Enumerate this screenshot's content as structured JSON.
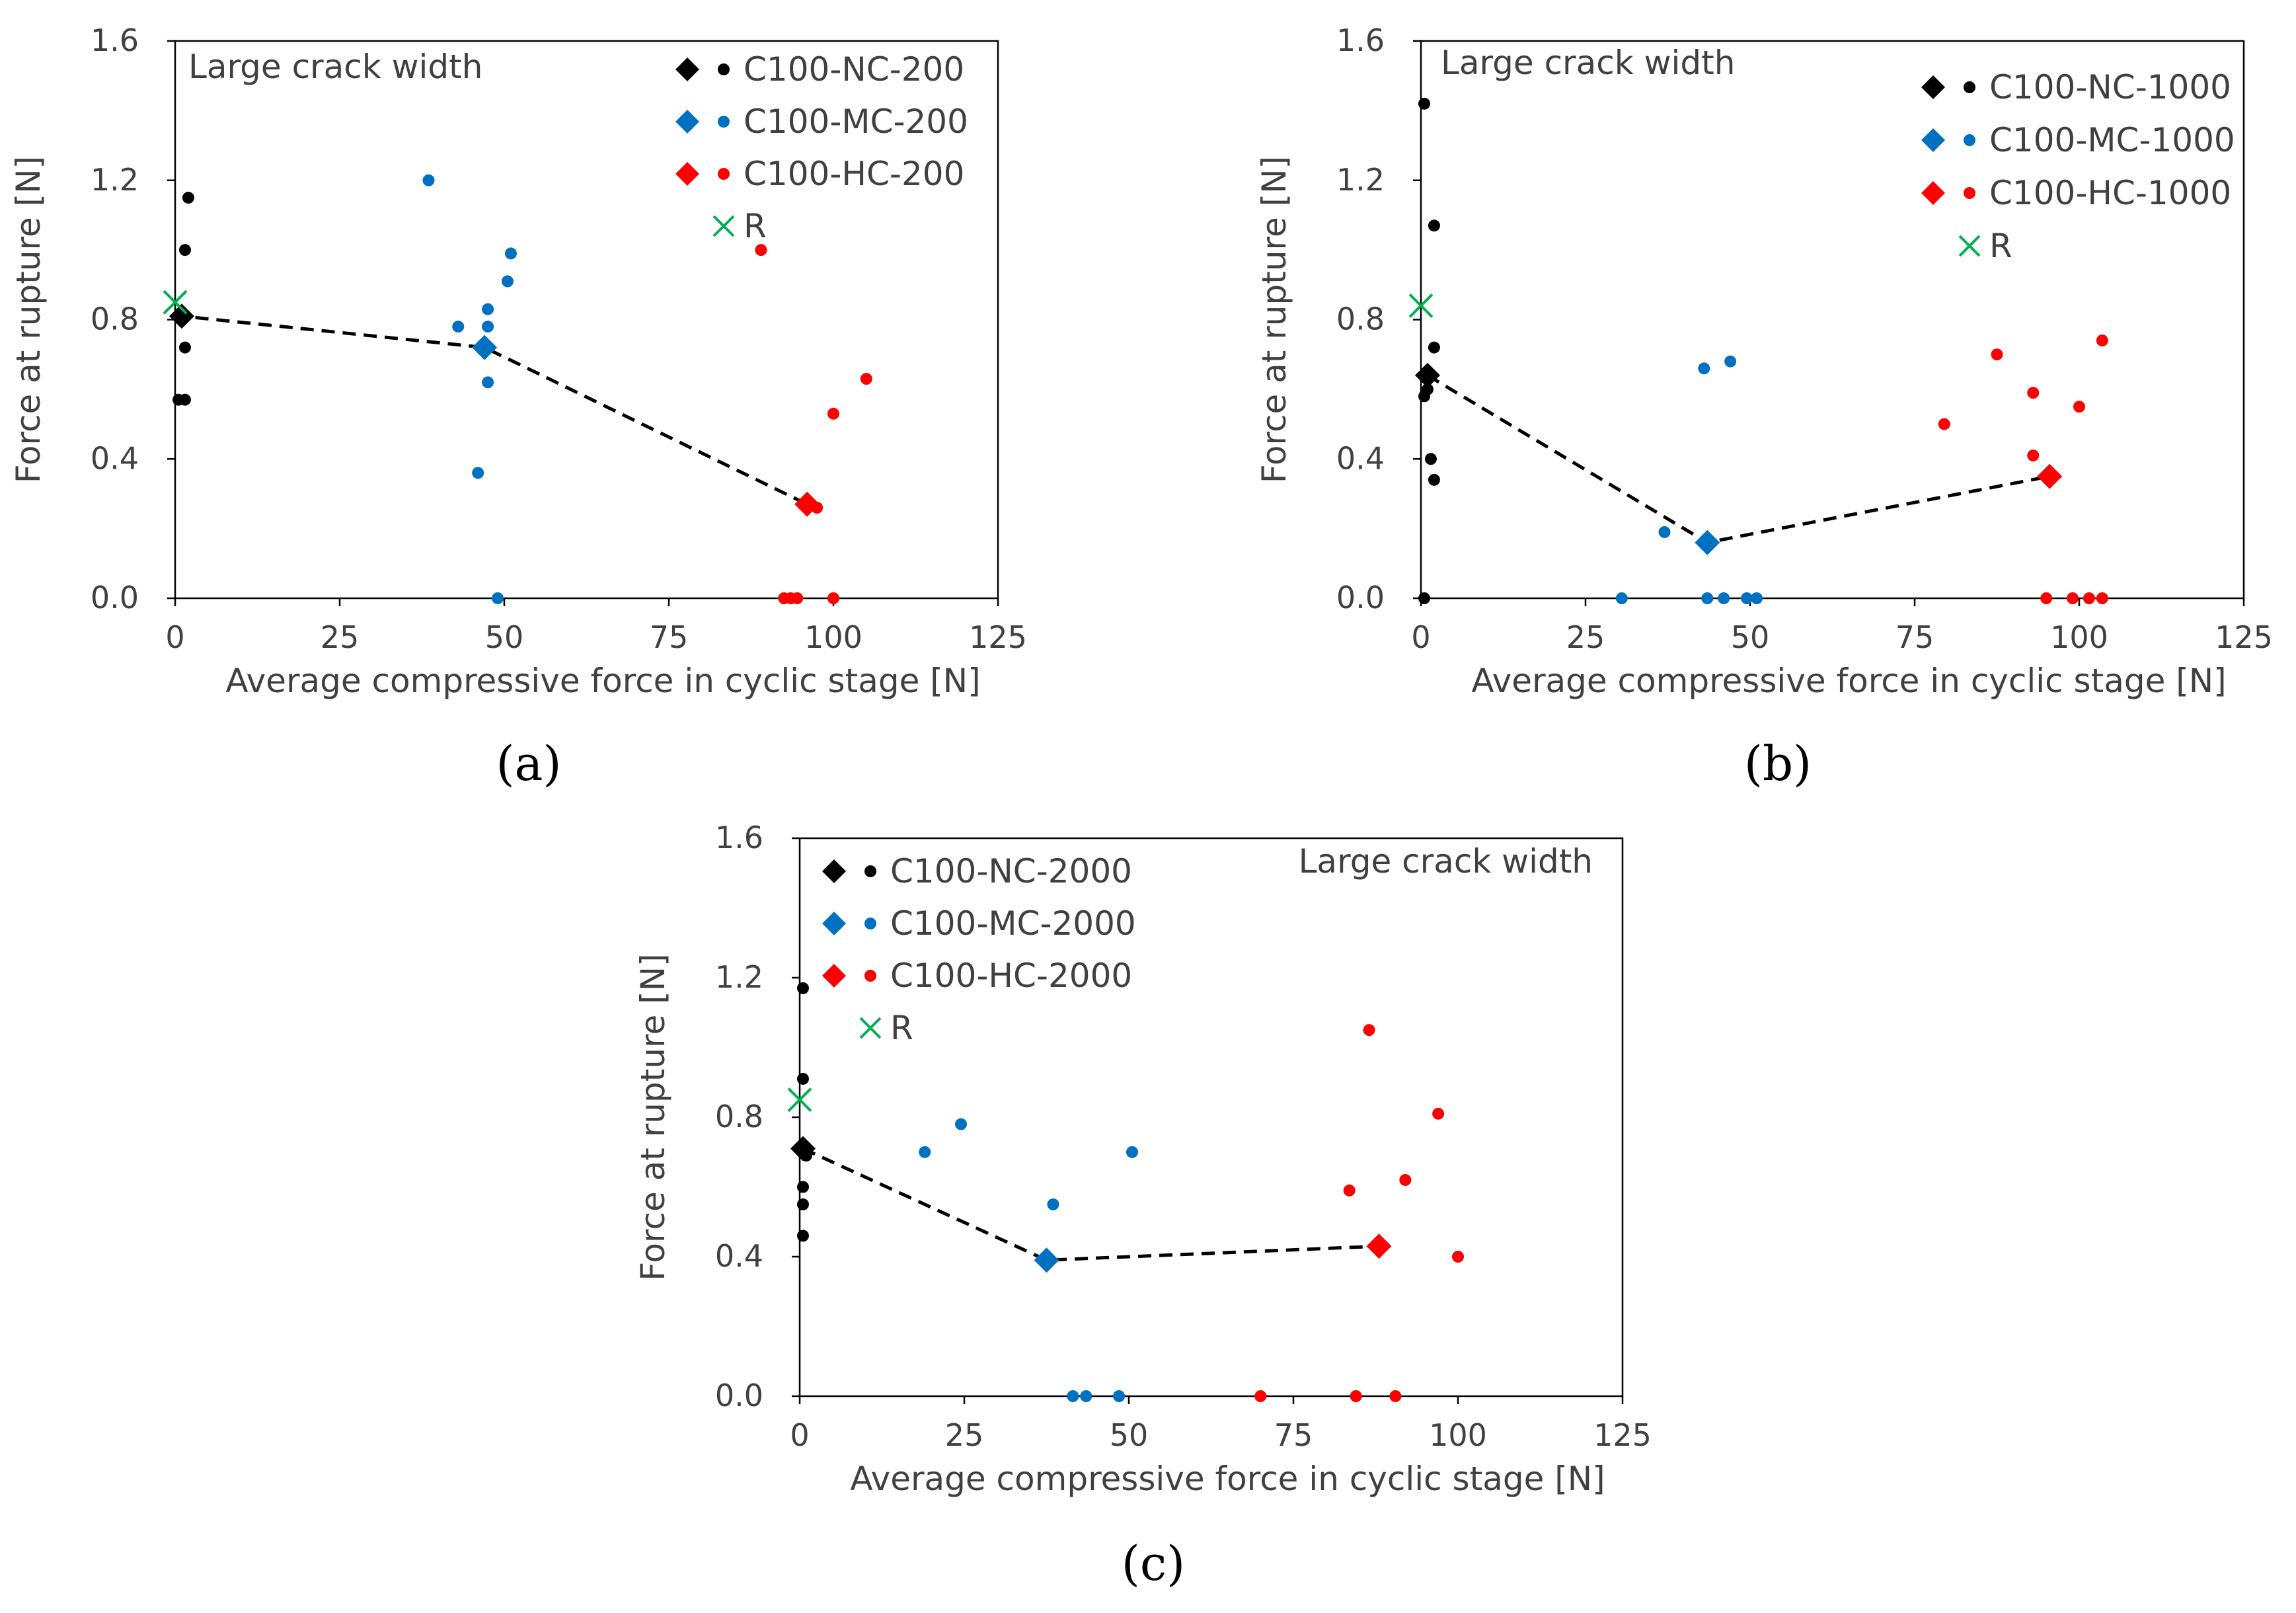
{
  "figure": {
    "panel_labels": [
      "(a)",
      "(b)",
      "(c)"
    ]
  },
  "colors": {
    "NC": "#000000",
    "MC": "#0070C0",
    "HC": "#FF0000",
    "R": "#00B050",
    "trend": "#000000",
    "axis": "#000000",
    "text": "#404040"
  },
  "chart_data": [
    {
      "type": "scatter",
      "panel": "(a)",
      "annotation": "Large crack width",
      "xlabel": "Average compressive force in cyclic stage [N]",
      "ylabel": "Force at rupture [N]",
      "xlim": [
        0,
        125
      ],
      "ylim": [
        0,
        1.6
      ],
      "xticks": [
        "0",
        "25",
        "50",
        "75",
        "100",
        "125"
      ],
      "yticks": [
        "0.0",
        "0.4",
        "0.8",
        "1.2",
        "1.6"
      ],
      "legend_position": "top-right",
      "legend": [
        "C100-NC-200",
        "C100-MC-200",
        "C100-HC-200",
        "R"
      ],
      "series": [
        {
          "name": "C100-NC-200",
          "color_key": "NC",
          "mean": [
            1,
            0.81
          ],
          "points": [
            [
              2,
              1.15
            ],
            [
              1.5,
              1.0
            ],
            [
              1.5,
              0.72
            ],
            [
              0.5,
              0.57
            ],
            [
              1.5,
              0.57
            ]
          ]
        },
        {
          "name": "C100-MC-200",
          "color_key": "MC",
          "mean": [
            47,
            0.72
          ],
          "points": [
            [
              38.5,
              1.2
            ],
            [
              51,
              0.99
            ],
            [
              50.5,
              0.91
            ],
            [
              47.5,
              0.83
            ],
            [
              43,
              0.78
            ],
            [
              47.5,
              0.78
            ],
            [
              47.5,
              0.62
            ],
            [
              46,
              0.36
            ],
            [
              49,
              0.0
            ]
          ]
        },
        {
          "name": "C100-HC-200",
          "color_key": "HC",
          "mean": [
            96,
            0.27
          ],
          "points": [
            [
              89,
              1.0
            ],
            [
              105,
              0.63
            ],
            [
              100,
              0.53
            ],
            [
              97.5,
              0.26
            ],
            [
              92.5,
              0.0
            ],
            [
              93.5,
              0.0
            ],
            [
              94.5,
              0.0
            ],
            [
              100,
              0.0
            ]
          ]
        }
      ],
      "R": [
        0,
        0.85
      ],
      "trend_line": [
        [
          0,
          0.82
        ],
        [
          1,
          0.81
        ],
        [
          47,
          0.72
        ],
        [
          96,
          0.27
        ]
      ]
    },
    {
      "type": "scatter",
      "panel": "(b)",
      "annotation": "Large crack width",
      "xlabel": "Average compressive force in cyclic stage [N]",
      "ylabel": "Force at rupture [N]",
      "xlim": [
        0,
        125
      ],
      "ylim": [
        0,
        1.6
      ],
      "xticks": [
        "0",
        "25",
        "50",
        "75",
        "100",
        "125"
      ],
      "yticks": [
        "0.0",
        "0.4",
        "0.8",
        "1.2",
        "1.6"
      ],
      "legend_position": "top-right",
      "legend": [
        "C100-NC-1000",
        "C100-MC-1000",
        "C100-HC-1000",
        "R"
      ],
      "series": [
        {
          "name": "C100-NC-1000",
          "color_key": "NC",
          "mean": [
            1,
            0.64
          ],
          "points": [
            [
              0.5,
              1.42
            ],
            [
              2,
              1.07
            ],
            [
              2,
              0.72
            ],
            [
              0.5,
              0.58
            ],
            [
              1,
              0.6
            ],
            [
              1.5,
              0.4
            ],
            [
              2,
              0.34
            ],
            [
              0.5,
              0.0
            ]
          ]
        },
        {
          "name": "C100-MC-1000",
          "color_key": "MC",
          "mean": [
            43.5,
            0.16
          ],
          "points": [
            [
              43,
              0.66
            ],
            [
              47,
              0.68
            ],
            [
              37,
              0.19
            ],
            [
              30.5,
              0.0
            ],
            [
              43.5,
              0.0
            ],
            [
              46,
              0.0
            ],
            [
              49.5,
              0.0
            ],
            [
              51,
              0.0
            ]
          ]
        },
        {
          "name": "C100-HC-1000",
          "color_key": "HC",
          "mean": [
            95.5,
            0.35
          ],
          "points": [
            [
              103.5,
              0.74
            ],
            [
              87.5,
              0.7
            ],
            [
              93,
              0.59
            ],
            [
              100,
              0.55
            ],
            [
              79.5,
              0.5
            ],
            [
              93,
              0.41
            ],
            [
              95,
              0.0
            ],
            [
              99,
              0.0
            ],
            [
              101.5,
              0.0
            ],
            [
              103.5,
              0.0
            ]
          ]
        }
      ],
      "R": [
        0,
        0.84
      ],
      "trend_line": [
        [
          1,
          0.64
        ],
        [
          43.5,
          0.16
        ],
        [
          95.5,
          0.35
        ]
      ]
    },
    {
      "type": "scatter",
      "panel": "(c)",
      "annotation": "Large crack width",
      "xlabel": "Average compressive force in cyclic stage [N]",
      "ylabel": "Force at rupture [N]",
      "xlim": [
        0,
        125
      ],
      "ylim": [
        0,
        1.6
      ],
      "xticks": [
        "0",
        "25",
        "50",
        "75",
        "100",
        "125"
      ],
      "yticks": [
        "0.0",
        "0.4",
        "0.8",
        "1.2",
        "1.6"
      ],
      "legend_position": "top-left",
      "legend": [
        "C100-NC-2000",
        "C100-MC-2000",
        "C100-HC-2000",
        "R"
      ],
      "series": [
        {
          "name": "C100-NC-2000",
          "color_key": "NC",
          "mean": [
            0.5,
            0.71
          ],
          "points": [
            [
              0.5,
              1.17
            ],
            [
              0.5,
              0.91
            ],
            [
              1,
              0.69
            ],
            [
              0.5,
              0.6
            ],
            [
              0.5,
              0.55
            ],
            [
              0.5,
              0.46
            ]
          ]
        },
        {
          "name": "C100-MC-2000",
          "color_key": "MC",
          "mean": [
            37.5,
            0.39
          ],
          "points": [
            [
              24.5,
              0.78
            ],
            [
              19,
              0.7
            ],
            [
              50.5,
              0.7
            ],
            [
              38.5,
              0.55
            ],
            [
              41.5,
              0.0
            ],
            [
              43.5,
              0.0
            ],
            [
              48.5,
              0.0
            ]
          ]
        },
        {
          "name": "C100-HC-2000",
          "color_key": "HC",
          "mean": [
            88,
            0.43
          ],
          "points": [
            [
              86.5,
              1.05
            ],
            [
              97,
              0.81
            ],
            [
              92,
              0.62
            ],
            [
              83.5,
              0.59
            ],
            [
              100,
              0.4
            ],
            [
              70,
              0.0
            ],
            [
              84.5,
              0.0
            ],
            [
              90.5,
              0.0
            ]
          ]
        }
      ],
      "R": [
        0,
        0.85
      ],
      "trend_line": [
        [
          0.5,
          0.71
        ],
        [
          37.5,
          0.39
        ],
        [
          88,
          0.43
        ]
      ]
    }
  ]
}
